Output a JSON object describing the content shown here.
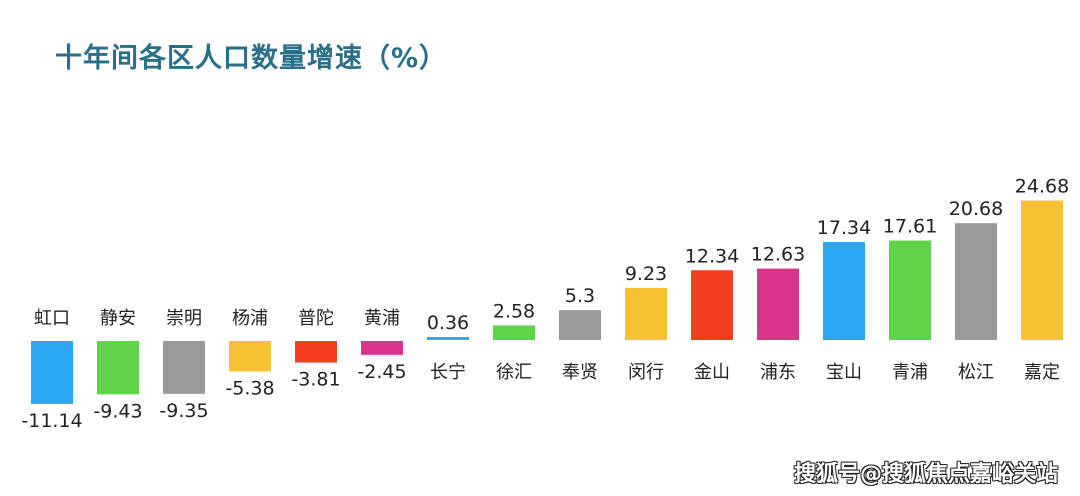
{
  "chart_data": {
    "type": "bar",
    "title": "十年间各区人口数量增速（%）",
    "categories": [
      "虹口",
      "静安",
      "崇明",
      "杨浦",
      "普陀",
      "黄浦",
      "长宁",
      "徐汇",
      "奉贤",
      "闵行",
      "金山",
      "浦东",
      "宝山",
      "青浦",
      "松江",
      "嘉定"
    ],
    "values": [
      -11.14,
      -9.43,
      -9.35,
      -5.38,
      -3.81,
      -2.45,
      0.36,
      2.58,
      5.3,
      9.23,
      12.34,
      12.63,
      17.34,
      17.61,
      20.68,
      24.68
    ],
    "value_labels": [
      "-11.14",
      "-9.43",
      "-9.35",
      "-5.38",
      "-3.81",
      "-2.45",
      "0.36",
      "2.58",
      "5.3",
      "9.23",
      "12.34",
      "12.63",
      "17.34",
      "17.61",
      "20.68",
      "24.68"
    ],
    "colors": [
      "#2aa8f2",
      "#5fd34a",
      "#9b9b9b",
      "#f6c232",
      "#f23d1f",
      "#d9348b",
      "#2aa8f2",
      "#5fd34a",
      "#9b9b9b",
      "#f6c232",
      "#f23d1f",
      "#d9348b",
      "#2aa8f2",
      "#5fd34a",
      "#9b9b9b",
      "#f6c232"
    ],
    "xlabel": "",
    "ylabel": "",
    "grid": false,
    "axes_visible": false
  },
  "watermark": "搜狐号@搜狐焦点嘉峪关站"
}
